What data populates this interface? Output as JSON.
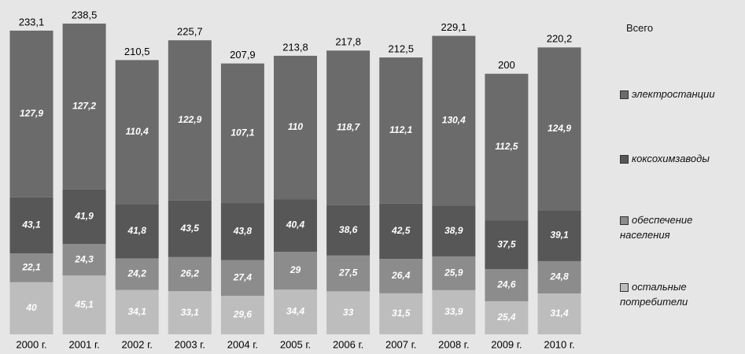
{
  "chart_data": {
    "type": "stacked_bar",
    "categories": [
      "2000 г.",
      "2001 г.",
      "2002 г.",
      "2003 г.",
      "2004 г.",
      "2005 г.",
      "2006 г.",
      "2007 г.",
      "2008 г.",
      "2009 г.",
      "2010 г."
    ],
    "total_name": "Всего",
    "totals": [
      233.1,
      238.5,
      210.5,
      225.7,
      207.9,
      213.8,
      217.8,
      212.5,
      229.1,
      200,
      220.2
    ],
    "total_labels": [
      "233,1",
      "238,5",
      "210,5",
      "225,7",
      "207,9",
      "213,8",
      "217,8",
      "212,5",
      "229,1",
      "200",
      "220,2"
    ],
    "series": [
      {
        "name": "остальные потребители",
        "color": "#bdbdbd",
        "values": [
          40,
          45.1,
          34.1,
          33.1,
          29.6,
          34.4,
          33,
          31.5,
          33.9,
          25.4,
          31.4
        ],
        "value_labels": [
          "40",
          "45,1",
          "34,1",
          "33,1",
          "29,6",
          "34,4",
          "33",
          "31,5",
          "33,9",
          "25,4",
          "31,4"
        ]
      },
      {
        "name": "обеспечение населения",
        "color": "#8c8c8c",
        "values": [
          22.1,
          24.3,
          24.2,
          26.2,
          27.4,
          29,
          27.5,
          26.4,
          25.9,
          24.6,
          24.8
        ],
        "value_labels": [
          "22,1",
          "24,3",
          "24,2",
          "26,2",
          "27,4",
          "29",
          "27,5",
          "26,4",
          "25,9",
          "24,6",
          "24,8"
        ]
      },
      {
        "name": "коксохимзаводы",
        "color": "#575757",
        "values": [
          43.1,
          41.9,
          41.8,
          43.5,
          43.8,
          40.4,
          38.6,
          42.5,
          38.9,
          37.5,
          39.1
        ],
        "value_labels": [
          "43,1",
          "41,9",
          "41,8",
          "43,5",
          "43,8",
          "40,4",
          "38,6",
          "42,5",
          "38,9",
          "37,5",
          "39,1"
        ]
      },
      {
        "name": "электростанции",
        "color": "#6b6b6b",
        "values": [
          127.9,
          127.2,
          110.4,
          122.9,
          107.1,
          110,
          118.7,
          112.1,
          130.4,
          112.5,
          124.9
        ],
        "value_labels": [
          "127,9",
          "127,2",
          "110,4",
          "122,9",
          "107,1",
          "110",
          "118,7",
          "112,1",
          "130,4",
          "112,5",
          "124,9"
        ]
      }
    ]
  }
}
